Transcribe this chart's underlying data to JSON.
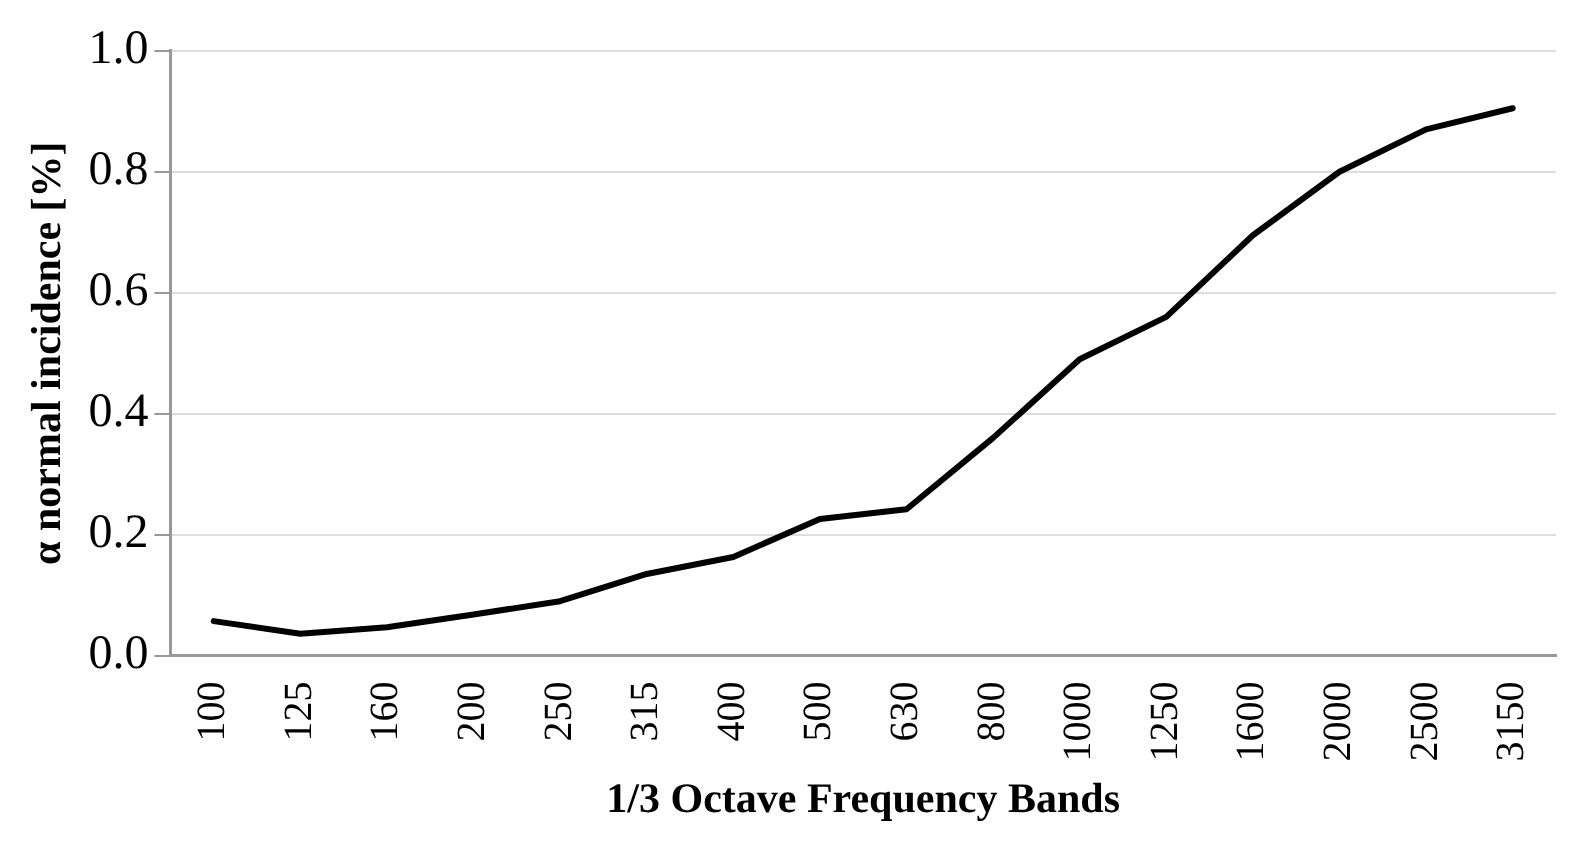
{
  "chart_data": {
    "type": "line",
    "xlabel": "1/3 Octave Frequency Bands",
    "ylabel": "α normal incidence [%]",
    "categories": [
      "100",
      "125",
      "160",
      "200",
      "250",
      "315",
      "400",
      "500",
      "630",
      "800",
      "1000",
      "1250",
      "1600",
      "2000",
      "2500",
      "3150"
    ],
    "series": [
      {
        "color": "#000000",
        "values": [
          0.057,
          0.036,
          0.047,
          0.068,
          0.09,
          0.135,
          0.163,
          0.226,
          0.242,
          0.36,
          0.49,
          0.56,
          0.695,
          0.8,
          0.87,
          0.905
        ]
      }
    ],
    "ylim": [
      0,
      1
    ],
    "yticks": [
      {
        "value": 0,
        "label": "0.0"
      },
      {
        "value": 0.2,
        "label": "0.2"
      },
      {
        "value": 0.4,
        "label": "0.4"
      },
      {
        "value": 0.6,
        "label": "0.6"
      },
      {
        "value": 0.8,
        "label": "0.8"
      },
      {
        "value": 1,
        "label": "1.0"
      }
    ],
    "grid": "y",
    "legend": false,
    "marker": "none",
    "line_style": "solid"
  }
}
